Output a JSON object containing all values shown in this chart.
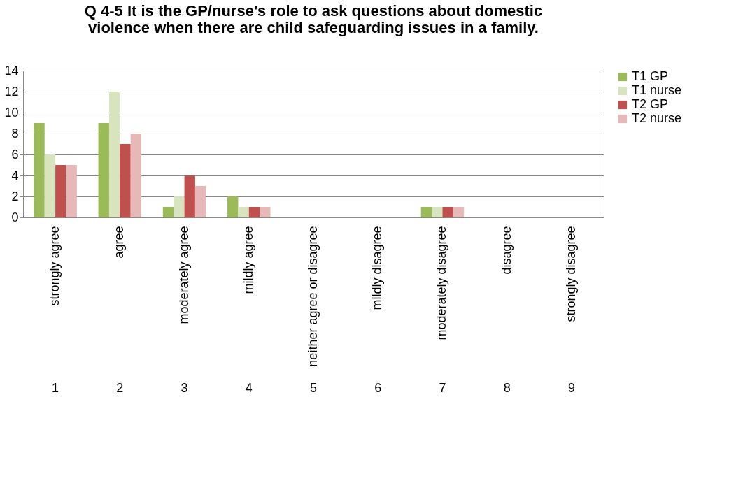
{
  "chart_data": {
    "type": "bar",
    "title": "Q 4-5  It is the GP/nurse's role to ask questions about domestic violence when there are child safeguarding issues in a family.",
    "categories": [
      "strongly agree",
      "agree",
      "moderately agree",
      "mildly agree",
      "neither agree or disagree",
      "mildly disagree",
      "moderately disagree",
      "disagree",
      "strongly disagree"
    ],
    "series": [
      {
        "name": "T1 GP",
        "color": "#9bbb59",
        "values": [
          9,
          9,
          1,
          2,
          0,
          0,
          1,
          0,
          0
        ]
      },
      {
        "name": "T1 nurse",
        "color": "#d7e4bd",
        "values": [
          6,
          12,
          2,
          1,
          0,
          0,
          1,
          0,
          0
        ]
      },
      {
        "name": "T2 GP",
        "color": "#c0504d",
        "values": [
          5,
          7,
          4,
          1,
          0,
          0,
          1,
          0,
          0
        ]
      },
      {
        "name": "T2 nurse",
        "color": "#e6b9b8",
        "values": [
          5,
          8,
          3,
          1,
          0,
          0,
          1,
          0,
          0
        ]
      }
    ],
    "annotations": [
      "1",
      "2",
      "3",
      "4",
      "5",
      "6",
      "7",
      "8",
      "9"
    ],
    "ylim": [
      0,
      14
    ],
    "yticks": [
      0,
      2,
      4,
      6,
      8,
      10,
      12,
      14
    ],
    "grid": "y",
    "legend": "right"
  }
}
